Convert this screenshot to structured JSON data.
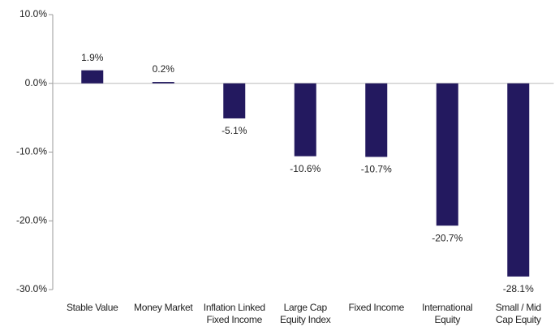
{
  "chart_data": {
    "type": "bar",
    "categories": [
      "Stable Value",
      "Money Market",
      "Inflation Linked\nFixed Income",
      "Large Cap\nEquity Index",
      "Fixed Income",
      "International\nEquity",
      "Small / Mid\nCap Equity"
    ],
    "values": [
      1.9,
      0.2,
      -5.1,
      -10.6,
      -10.7,
      -20.7,
      -28.1
    ],
    "value_labels": [
      "1.9%",
      "0.2%",
      "-5.1%",
      "-10.6%",
      "-10.7%",
      "-20.7%",
      "-28.1%"
    ],
    "color": "#23195f",
    "ylim": [
      -30,
      10
    ],
    "yticks": [
      {
        "value": 10,
        "label": "10.0%"
      },
      {
        "value": 0,
        "label": "0.0%"
      },
      {
        "value": -10,
        "label": "-10.0%"
      },
      {
        "value": -20,
        "label": "-20.0%"
      },
      {
        "value": -30,
        "label": "-30.0%"
      }
    ]
  }
}
